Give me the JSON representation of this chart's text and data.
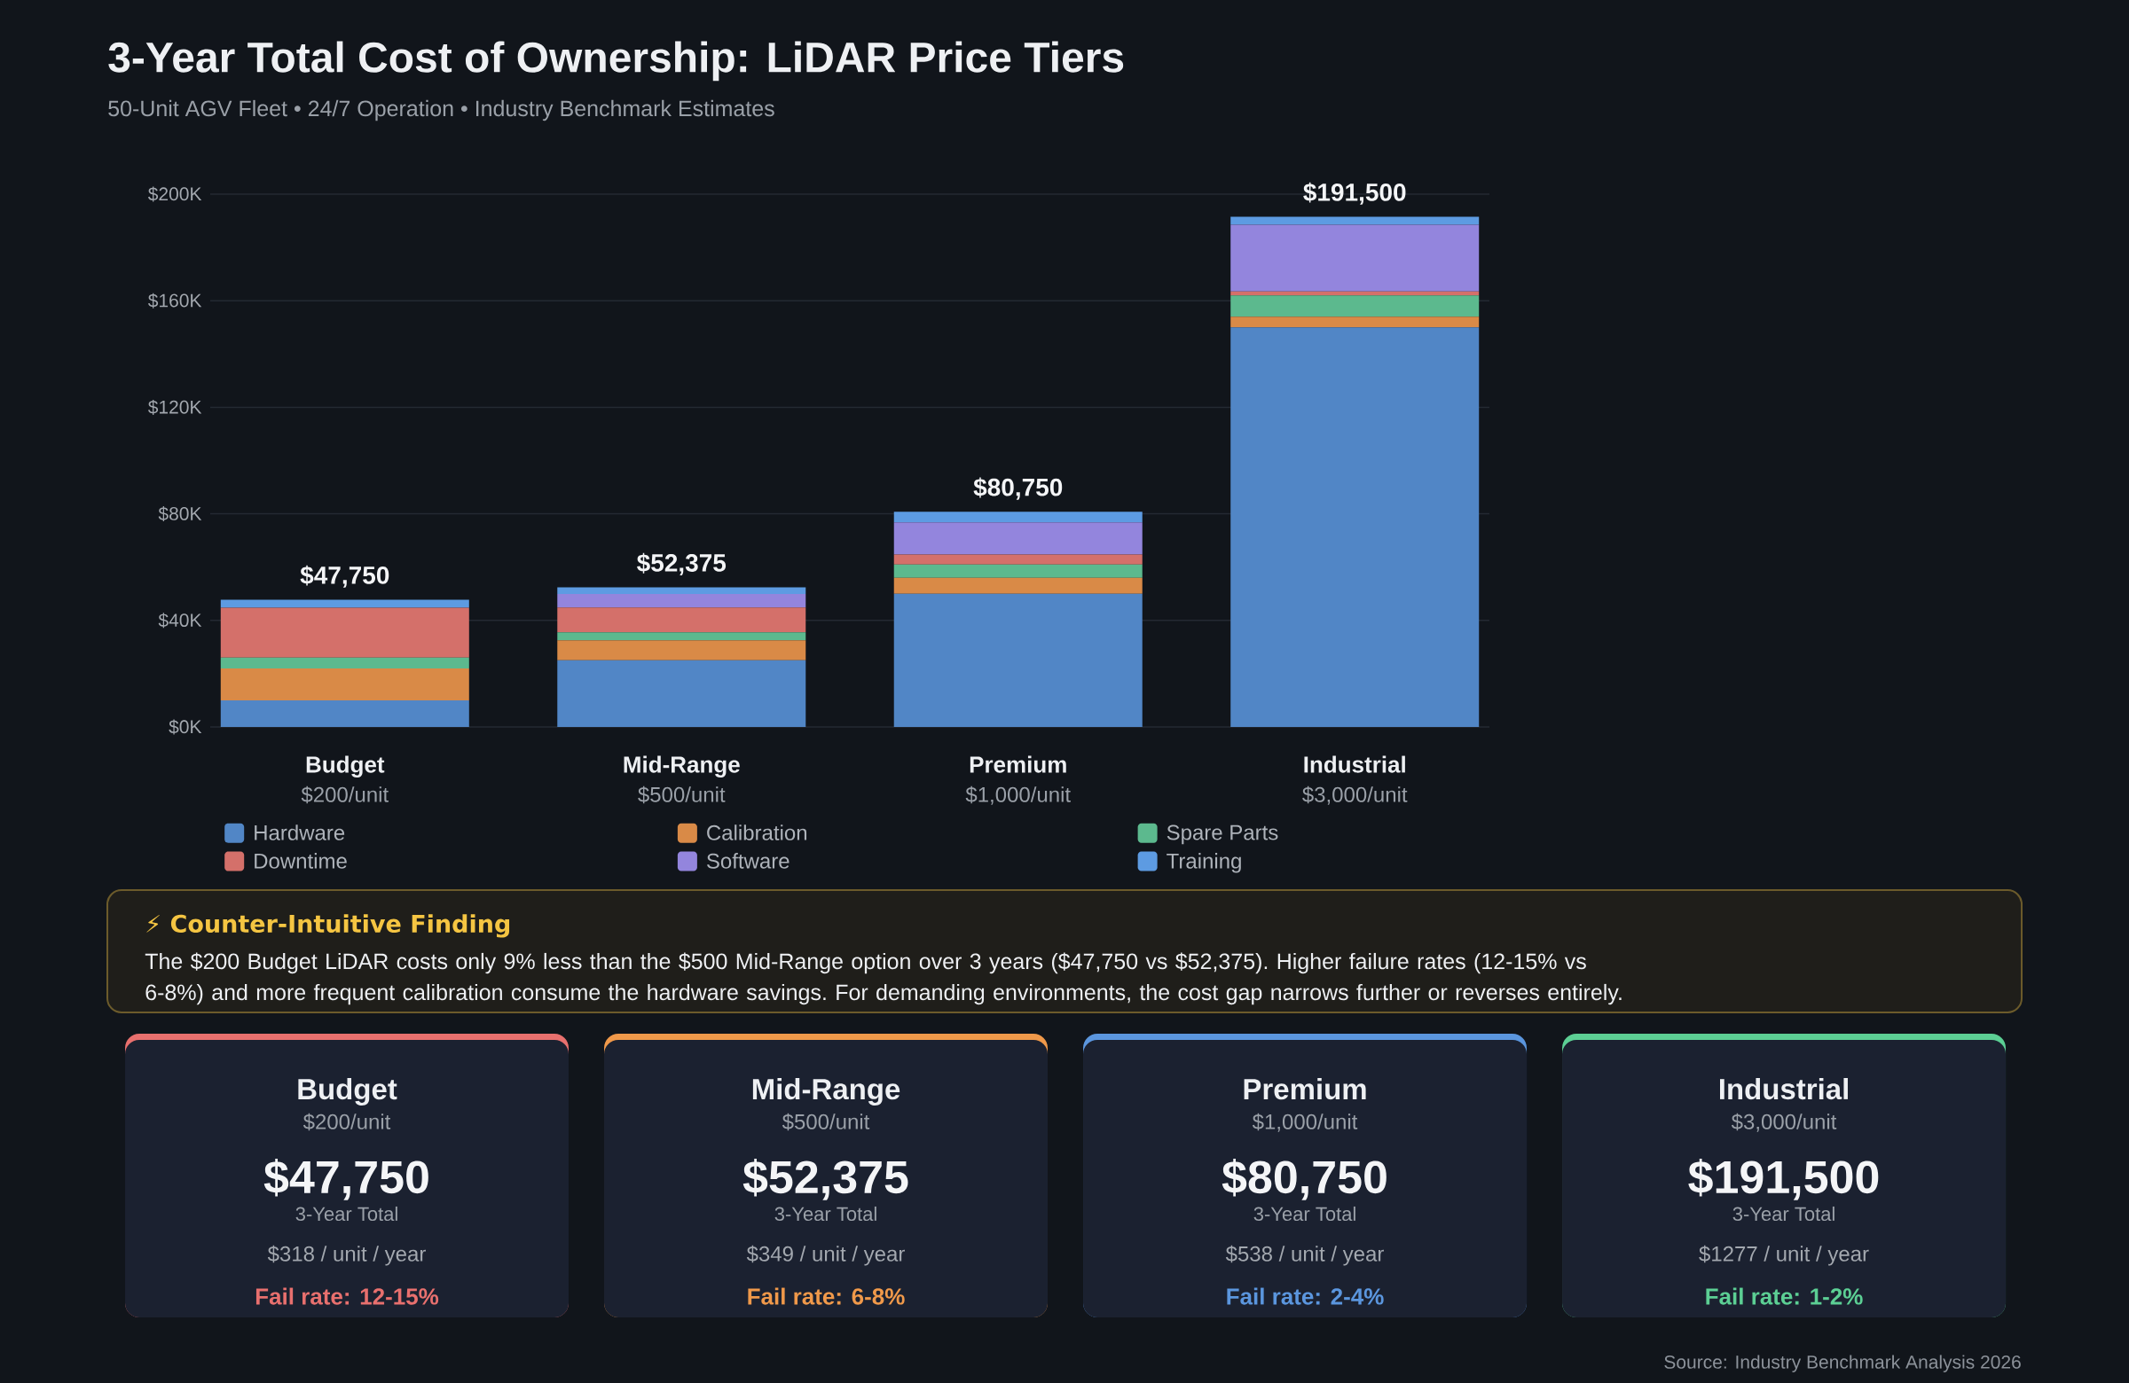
{
  "chart_data": [
    {
      "type": "bar",
      "title": "3-Year Total Cost of Ownership: LiDAR Price Tiers",
      "subtitle": "50-Unit AGV Fleet • 24/7 Operation • Industry Benchmark Estimates",
      "categories": [
        "Budget",
        "Mid-Range",
        "Premium",
        "Industrial"
      ],
      "series": [
        {
          "name": "Hardware",
          "color": "#5186c6",
          "values": [
            10000,
            25000,
            50000,
            150000
          ]
        },
        {
          "name": "Calibration",
          "color": "#d98a47",
          "values": [
            12000,
            7500,
            6000,
            4000
          ]
        },
        {
          "name": "Spare Parts",
          "color": "#5cb98e",
          "values": [
            4000,
            3000,
            5000,
            8000
          ]
        },
        {
          "name": "Downtime",
          "color": "#d4706a",
          "values": [
            18750,
            9375,
            3750,
            1500
          ]
        },
        {
          "name": "Software",
          "color": "#9385dd",
          "values": [
            0,
            5000,
            12000,
            25000
          ]
        },
        {
          "name": "Training",
          "color": "#5d9be2",
          "values": [
            3000,
            2500,
            4000,
            3000
          ]
        }
      ],
      "stacked": true,
      "ylim": [
        0,
        200000
      ],
      "yticks": [
        {
          "value": 0,
          "label": "$0K"
        },
        {
          "value": 40000,
          "label": "$40K"
        },
        {
          "value": 80000,
          "label": "$80K"
        },
        {
          "value": 120000,
          "label": "$120K"
        },
        {
          "value": 160000,
          "label": "$160K"
        },
        {
          "value": 200000,
          "label": "$200K"
        }
      ],
      "grid": "y",
      "legend": "bottom",
      "totals": [
        "$47,750",
        "$52,375",
        "$80,750",
        "$191,500"
      ],
      "annotations": [
        "$200/unit",
        "$500/unit",
        "$1,000/unit",
        "$3,000/unit",
        "Source: Industry Benchmark Analysis 2026"
      ]
    },
    {
      "type": "other",
      "title": "⚡ Counter-Intuitive Finding",
      "color": "#f5c542",
      "annotations": [
        "The $200 Budget LiDAR costs only 9% less than the $500 Mid-Range option over 3 years ($47,750 vs $52,375). Higher failure rates (12-15% vs 6-8%) and more frequent calibration consume the hardware savings. For demanding environments, the cost gap narrows further or reverses entirely."
      ]
    },
    {
      "type": "other",
      "title": "Budget",
      "subtitle": "$200/unit",
      "color": "#e8706e",
      "annotations": [
        "$47,750",
        "3-Year Total",
        "$318 / unit / year",
        "Fail rate: 12-15%"
      ]
    },
    {
      "type": "other",
      "title": "Mid-Range",
      "subtitle": "$500/unit",
      "color": "#f0994a",
      "annotations": [
        "$52,375",
        "3-Year Total",
        "$349 / unit / year",
        "Fail rate: 6-8%"
      ]
    },
    {
      "type": "other",
      "title": "Premium",
      "subtitle": "$1,000/unit",
      "color": "#5b96de",
      "annotations": [
        "$80,750",
        "3-Year Total",
        "$538 / unit / year",
        "Fail rate: 2-4%"
      ]
    },
    {
      "type": "other",
      "title": "Industrial",
      "subtitle": "$3,000/unit",
      "color": "#5ccf94",
      "annotations": [
        "$191,500",
        "3-Year Total",
        "$1277 / unit / year",
        "Fail rate: 1-2%"
      ]
    }
  ]
}
